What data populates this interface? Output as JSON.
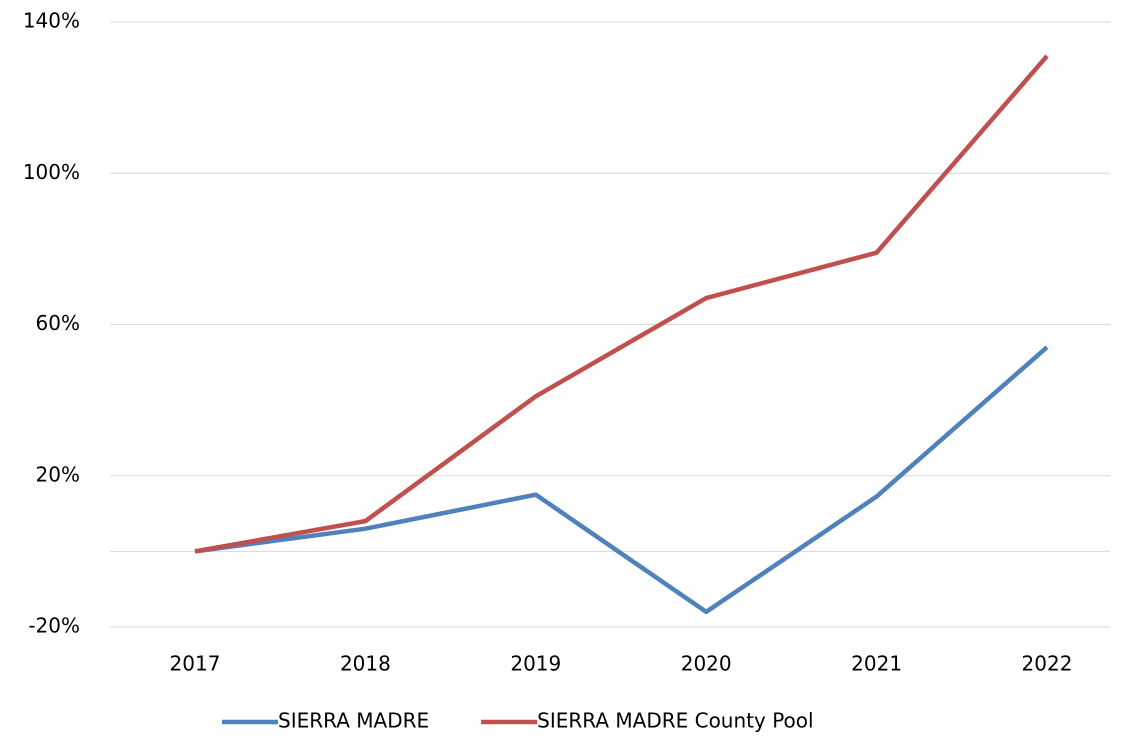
{
  "chart_data": {
    "type": "line",
    "categories": [
      "2017",
      "2018",
      "2019",
      "2020",
      "2021",
      "2022"
    ],
    "series": [
      {
        "name": "SIERRA MADRE",
        "color": "#4f81bd",
        "values": [
          0,
          6,
          15,
          -16,
          14.5,
          54
        ]
      },
      {
        "name": "SIERRA MADRE County Pool",
        "color": "#c0504d",
        "values": [
          0,
          8,
          41,
          67,
          79,
          131
        ]
      }
    ],
    "ylim": [
      -20,
      140
    ],
    "yticks": [
      {
        "value": -20,
        "label": "-20%"
      },
      {
        "value": 20,
        "label": "20%"
      },
      {
        "value": 60,
        "label": "60%"
      },
      {
        "value": 100,
        "label": "100%"
      },
      {
        "value": 140,
        "label": "140%"
      }
    ],
    "grid": true,
    "legend": "bottom"
  }
}
